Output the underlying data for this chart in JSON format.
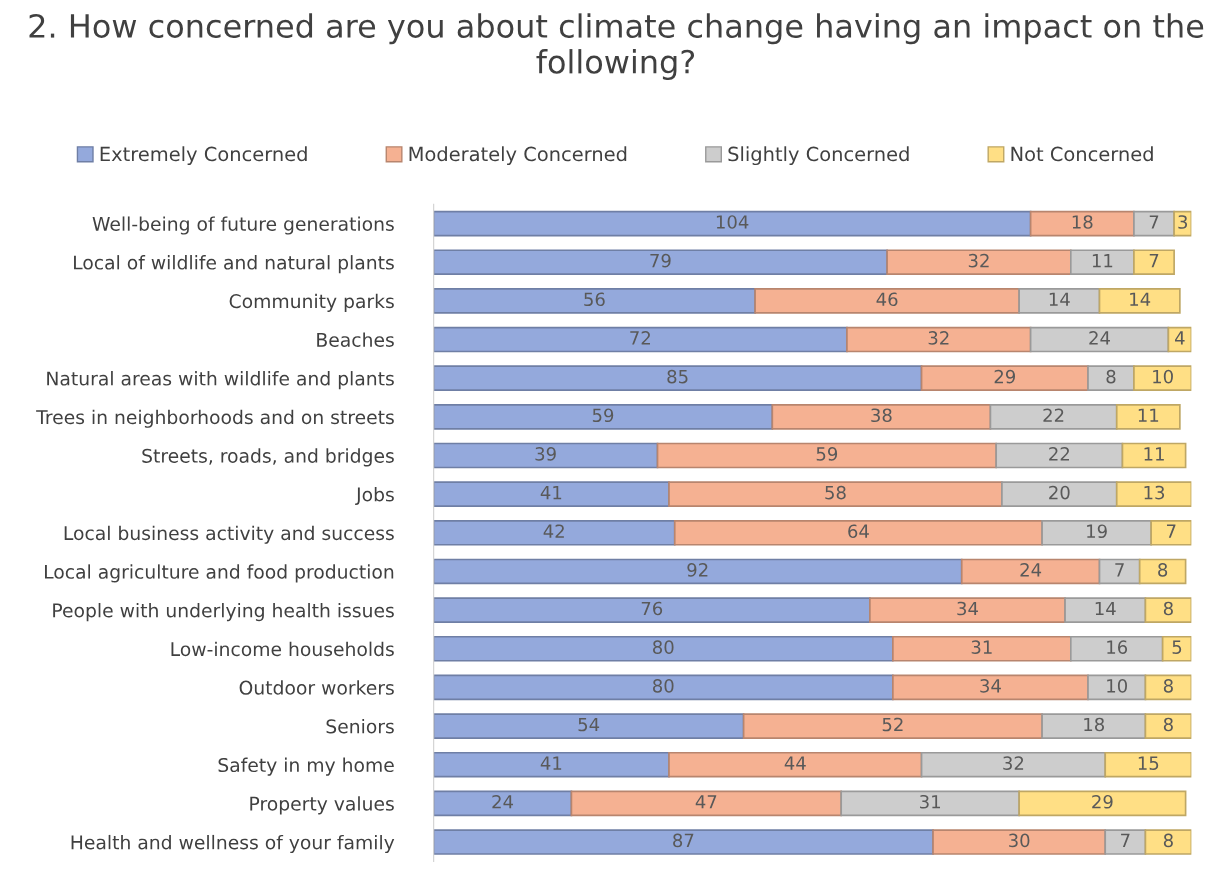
{
  "chart_data": {
    "type": "bar",
    "orientation": "horizontal",
    "stacked": true,
    "data_labels": true,
    "legend": "top",
    "grid": false,
    "tick_labels": "y",
    "title": "2. How concerned are you about climate change having an impact on the following?",
    "categories": [
      "Well-being of future generations",
      "Local of wildlife and natural plants",
      "Community parks",
      "Beaches",
      "Natural areas with wildlife and plants",
      "Trees in neighborhoods and on streets",
      "Streets, roads, and bridges",
      "Jobs",
      "Local business activity and success",
      "Local agriculture and food production",
      "People with underlying health issues",
      "Low-income households",
      "Outdoor workers",
      "Seniors",
      "Safety in my home",
      "Property values",
      "Health and wellness of your family"
    ],
    "series": [
      {
        "name": "Extremely Concerned",
        "color": "#94a9dc",
        "values": [
          104,
          79,
          56,
          72,
          85,
          59,
          39,
          41,
          42,
          92,
          76,
          80,
          80,
          54,
          41,
          24,
          87
        ]
      },
      {
        "name": "Moderately Concerned",
        "color": "#f5b192",
        "values": [
          18,
          32,
          46,
          32,
          29,
          38,
          59,
          58,
          64,
          24,
          34,
          31,
          34,
          52,
          44,
          47,
          30
        ]
      },
      {
        "name": "Slightly Concerned",
        "color": "#cdcdcd",
        "values": [
          7,
          11,
          14,
          24,
          8,
          22,
          22,
          20,
          19,
          7,
          14,
          16,
          10,
          18,
          32,
          31,
          7
        ]
      },
      {
        "name": "Not Concerned",
        "color": "#ffdf85",
        "values": [
          3,
          7,
          14,
          4,
          10,
          11,
          11,
          13,
          7,
          8,
          8,
          5,
          8,
          8,
          15,
          29,
          8
        ]
      }
    ]
  }
}
